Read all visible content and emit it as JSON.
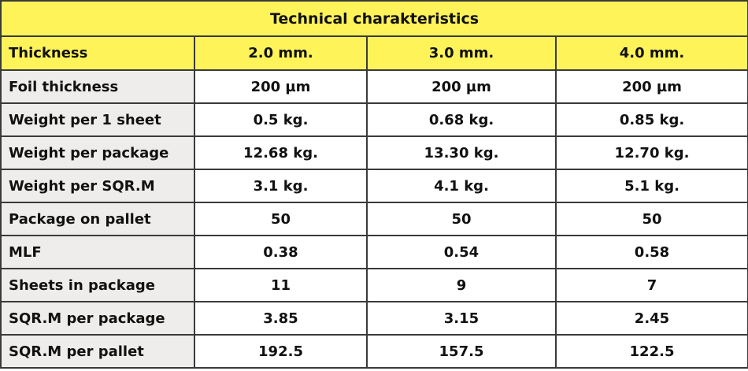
{
  "table": {
    "title": "Technical charakteristics",
    "header": [
      "Thickness",
      "2.0 mm.",
      "3.0 mm.",
      "4.0 mm."
    ],
    "rows": [
      [
        "Foil thickness",
        "200 µm",
        "200 µm",
        "200 µm"
      ],
      [
        "Weight per 1 sheet",
        "0.5 kg.",
        "0.68 kg.",
        "0.85 kg."
      ],
      [
        "Weight per package",
        "12.68 kg.",
        "13.30 kg.",
        "12.70 kg."
      ],
      [
        "Weight per SQR.M",
        "3.1 kg.",
        "4.1 kg.",
        "5.1 kg."
      ],
      [
        "Package on pallet",
        "50",
        "50",
        "50"
      ],
      [
        "MLF",
        "0.38",
        "0.54",
        "0.58"
      ],
      [
        "Sheets in package",
        "11",
        "9",
        "7"
      ],
      [
        "SQR.M per package",
        "3.85",
        "3.15",
        "2.45"
      ],
      [
        "SQR.M per pallet",
        "192.5",
        "157.5",
        "122.5"
      ]
    ]
  }
}
